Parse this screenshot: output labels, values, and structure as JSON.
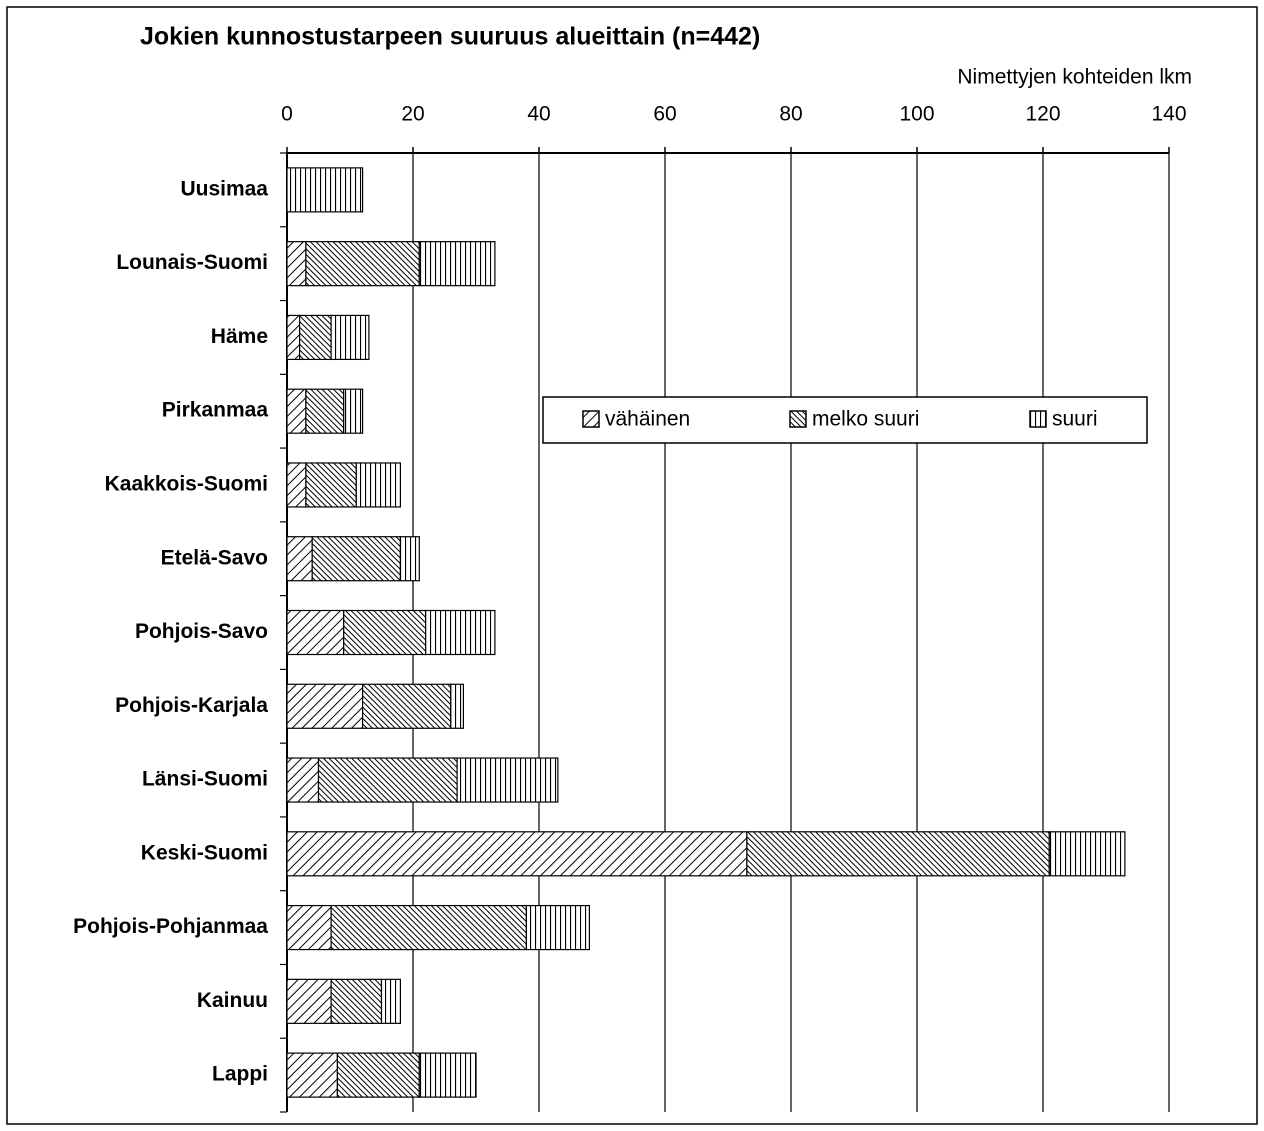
{
  "chart_data": {
    "type": "bar",
    "orientation": "horizontal",
    "stacked": true,
    "title": "Jokien kunnostustarpeen suuruus alueittain (n=442)",
    "x_label": "Nimettyjen kohteiden lkm",
    "categories": [
      "Uusimaa",
      "Lounais-Suomi",
      "Häme",
      "Pirkanmaa",
      "Kaakkois-Suomi",
      "Etelä-Savo",
      "Pohjois-Savo",
      "Pohjois-Karjala",
      "Länsi-Suomi",
      "Keski-Suomi",
      "Pohjois-Pohjanmaa",
      "Kainuu",
      "Lappi"
    ],
    "series": [
      {
        "name": "vähäinen",
        "color": "#000000",
        "values": [
          0,
          3,
          2,
          3,
          3,
          4,
          9,
          12,
          5,
          73,
          7,
          7,
          8
        ]
      },
      {
        "name": "melko suuri",
        "color": "#000000",
        "values": [
          0,
          18,
          5,
          6,
          8,
          14,
          13,
          14,
          22,
          48,
          31,
          8,
          13
        ]
      },
      {
        "name": "suuri",
        "color": "#000000",
        "values": [
          12,
          12,
          6,
          3,
          7,
          3,
          11,
          2,
          16,
          12,
          10,
          3,
          9
        ]
      }
    ],
    "xlim": [
      0,
      140
    ],
    "xticks": [
      0,
      20,
      40,
      60,
      80,
      100,
      120,
      140
    ],
    "grid": true
  }
}
